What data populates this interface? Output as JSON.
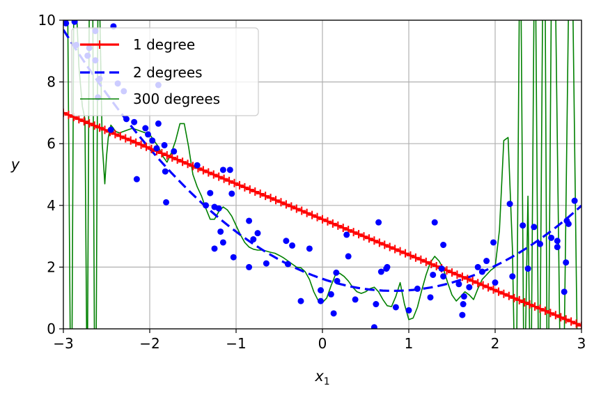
{
  "chart_data": {
    "type": "scatter",
    "xlabel": "x",
    "xlabel_sub": "1",
    "ylabel": "y",
    "xlim": [
      -3,
      3
    ],
    "ylim": [
      0,
      10
    ],
    "xticks": [
      -3,
      -2,
      -1,
      0,
      1,
      2,
      3
    ],
    "yticks": [
      0,
      2,
      4,
      6,
      8,
      10
    ],
    "xtick_labels": [
      "−3",
      "−2",
      "−1",
      "0",
      "1",
      "2",
      "3"
    ],
    "ytick_labels": [
      "0",
      "2",
      "4",
      "6",
      "8",
      "10"
    ],
    "grid": true,
    "legend_position": "top-left",
    "points": {
      "color": "#0000ff",
      "data": [
        [
          -2.97,
          9.9
        ],
        [
          -2.87,
          9.95
        ],
        [
          -2.85,
          9.2
        ],
        [
          -2.72,
          8.85
        ],
        [
          -2.7,
          9.1
        ],
        [
          -2.63,
          9.65
        ],
        [
          -2.63,
          8.7
        ],
        [
          -2.6,
          7.5
        ],
        [
          -2.58,
          8.1
        ],
        [
          -2.45,
          6.45
        ],
        [
          -2.42,
          9.8
        ],
        [
          -2.37,
          7.95
        ],
        [
          -2.3,
          7.7
        ],
        [
          -2.27,
          6.8
        ],
        [
          -2.18,
          6.7
        ],
        [
          -2.15,
          4.85
        ],
        [
          -2.05,
          6.5
        ],
        [
          -2.02,
          6.3
        ],
        [
          -1.97,
          6.1
        ],
        [
          -1.92,
          5.85
        ],
        [
          -1.9,
          6.65
        ],
        [
          -1.9,
          7.9
        ],
        [
          -1.83,
          5.95
        ],
        [
          -1.82,
          5.1
        ],
        [
          -1.81,
          4.1
        ],
        [
          -1.72,
          5.75
        ],
        [
          -1.45,
          5.3
        ],
        [
          -1.35,
          4.0
        ],
        [
          -1.3,
          4.4
        ],
        [
          -1.25,
          3.95
        ],
        [
          -1.25,
          2.6
        ],
        [
          -1.2,
          3.9
        ],
        [
          -1.18,
          3.15
        ],
        [
          -1.15,
          5.15
        ],
        [
          -1.15,
          2.8
        ],
        [
          -1.07,
          5.15
        ],
        [
          -1.05,
          4.38
        ],
        [
          -1.03,
          2.32
        ],
        [
          -0.85,
          3.5
        ],
        [
          -0.85,
          2.0
        ],
        [
          -0.8,
          2.9
        ],
        [
          -0.75,
          3.1
        ],
        [
          -0.65,
          2.12
        ],
        [
          -0.42,
          2.85
        ],
        [
          -0.4,
          2.1
        ],
        [
          -0.35,
          2.7
        ],
        [
          -0.25,
          0.9
        ],
        [
          -0.15,
          2.6
        ],
        [
          -0.02,
          1.25
        ],
        [
          -0.02,
          0.9
        ],
        [
          0.1,
          1.12
        ],
        [
          0.13,
          0.5
        ],
        [
          0.16,
          1.82
        ],
        [
          0.17,
          1.55
        ],
        [
          0.28,
          3.05
        ],
        [
          0.3,
          2.35
        ],
        [
          0.38,
          0.95
        ],
        [
          0.6,
          0.05
        ],
        [
          0.62,
          0.8
        ],
        [
          0.65,
          3.45
        ],
        [
          0.68,
          1.85
        ],
        [
          0.74,
          1.95
        ],
        [
          0.75,
          2.0
        ],
        [
          0.85,
          0.7
        ],
        [
          1.0,
          0.6
        ],
        [
          1.1,
          1.3
        ],
        [
          1.25,
          1.02
        ],
        [
          1.28,
          1.75
        ],
        [
          1.3,
          3.45
        ],
        [
          1.38,
          1.95
        ],
        [
          1.4,
          1.7
        ],
        [
          1.4,
          2.72
        ],
        [
          1.58,
          1.45
        ],
        [
          1.62,
          0.45
        ],
        [
          1.63,
          0.8
        ],
        [
          1.64,
          1.05
        ],
        [
          1.7,
          1.35
        ],
        [
          1.8,
          2.0
        ],
        [
          1.85,
          1.85
        ],
        [
          1.9,
          2.2
        ],
        [
          1.98,
          2.8
        ],
        [
          2.0,
          1.5
        ],
        [
          2.17,
          4.05
        ],
        [
          2.2,
          1.7
        ],
        [
          2.32,
          3.35
        ],
        [
          2.38,
          1.95
        ],
        [
          2.45,
          3.3
        ],
        [
          2.52,
          2.75
        ],
        [
          2.65,
          2.95
        ],
        [
          2.72,
          2.85
        ],
        [
          2.72,
          2.65
        ],
        [
          2.8,
          1.2
        ],
        [
          2.82,
          2.15
        ],
        [
          2.83,
          3.5
        ],
        [
          2.85,
          3.4
        ],
        [
          2.92,
          4.15
        ]
      ]
    },
    "series": [
      {
        "name": "1 degree",
        "color": "#ff0000",
        "style": "solid-plus",
        "model": "linear",
        "intercept": 3.55,
        "slope": -1.15
      },
      {
        "name": "2 degrees",
        "color": "#0000ff",
        "style": "dashed",
        "model": "quadratic",
        "a": 0.58,
        "b": -0.95,
        "c": 1.62
      },
      {
        "name": "300 degrees",
        "color": "#008000",
        "style": "thin",
        "model": "samples",
        "x": [
          -3.0,
          -2.95,
          -2.92,
          -2.9,
          -2.88,
          -2.85,
          -2.82,
          -2.78,
          -2.75,
          -2.73,
          -2.72,
          -2.7,
          -2.66,
          -2.64,
          -2.62,
          -2.6,
          -2.58,
          -2.55,
          -2.52,
          -2.5,
          -2.48,
          -2.45,
          -2.42,
          -2.4,
          -2.35,
          -2.3,
          -2.25,
          -2.2,
          -2.15,
          -2.1,
          -2.05,
          -2.0,
          -1.95,
          -1.9,
          -1.85,
          -1.8,
          -1.75,
          -1.7,
          -1.65,
          -1.6,
          -1.55,
          -1.5,
          -1.45,
          -1.4,
          -1.35,
          -1.3,
          -1.25,
          -1.2,
          -1.15,
          -1.1,
          -1.05,
          -1.0,
          -0.95,
          -0.9,
          -0.85,
          -0.8,
          -0.75,
          -0.7,
          -0.65,
          -0.6,
          -0.55,
          -0.5,
          -0.45,
          -0.4,
          -0.35,
          -0.3,
          -0.25,
          -0.2,
          -0.15,
          -0.1,
          -0.05,
          0.0,
          0.05,
          0.1,
          0.15,
          0.2,
          0.25,
          0.3,
          0.35,
          0.4,
          0.45,
          0.5,
          0.55,
          0.6,
          0.65,
          0.7,
          0.75,
          0.8,
          0.85,
          0.9,
          0.95,
          1.0,
          1.05,
          1.1,
          1.15,
          1.2,
          1.25,
          1.3,
          1.35,
          1.4,
          1.45,
          1.5,
          1.55,
          1.6,
          1.65,
          1.7,
          1.75,
          1.8,
          1.85,
          1.9,
          1.95,
          2.0,
          2.05,
          2.1,
          2.15,
          2.2,
          2.22,
          2.25,
          2.28,
          2.3,
          2.33,
          2.35,
          2.38,
          2.4,
          2.42,
          2.45,
          2.47,
          2.5,
          2.52,
          2.55,
          2.58,
          2.6,
          2.62,
          2.65,
          2.7,
          2.75,
          2.8,
          2.85,
          2.9,
          2.95,
          3.0
        ],
        "y": [
          10.5,
          10.5,
          -0.5,
          -0.5,
          10.5,
          10.5,
          8.5,
          7.2,
          6.8,
          -0.5,
          -0.5,
          10.5,
          10.5,
          -0.5,
          -0.5,
          10.5,
          10.5,
          6.0,
          4.7,
          5.6,
          6.2,
          6.6,
          6.5,
          6.4,
          6.35,
          6.4,
          6.45,
          6.5,
          6.45,
          6.4,
          6.35,
          6.3,
          6.1,
          5.9,
          5.6,
          5.4,
          5.7,
          6.1,
          6.65,
          6.65,
          5.9,
          5.0,
          4.6,
          4.3,
          3.9,
          3.55,
          3.55,
          3.8,
          3.95,
          3.85,
          3.65,
          3.35,
          3.05,
          2.8,
          2.65,
          2.58,
          2.55,
          2.55,
          2.52,
          2.48,
          2.45,
          2.38,
          2.3,
          2.2,
          2.1,
          2.0,
          1.98,
          1.85,
          1.6,
          1.2,
          0.92,
          0.85,
          1.0,
          1.4,
          1.75,
          1.8,
          1.7,
          1.55,
          1.35,
          1.2,
          1.15,
          1.2,
          1.3,
          1.35,
          1.2,
          0.95,
          0.75,
          0.72,
          1.05,
          1.5,
          0.8,
          0.3,
          0.35,
          0.7,
          1.25,
          1.75,
          2.15,
          2.35,
          2.2,
          1.95,
          1.5,
          1.1,
          0.9,
          1.05,
          1.2,
          1.1,
          0.95,
          1.3,
          1.6,
          1.75,
          1.9,
          2.0,
          3.2,
          6.1,
          6.2,
          2.6,
          -0.5,
          -0.5,
          10.5,
          10.5,
          -0.5,
          -0.5,
          4.3,
          -0.5,
          -0.5,
          10.5,
          10.5,
          -0.5,
          -0.5,
          10.5,
          10.5,
          -0.5,
          -0.5,
          10.5,
          10.5,
          -0.5,
          -0.5,
          10.5,
          10.5,
          -0.5,
          -0.5
        ]
      }
    ]
  }
}
